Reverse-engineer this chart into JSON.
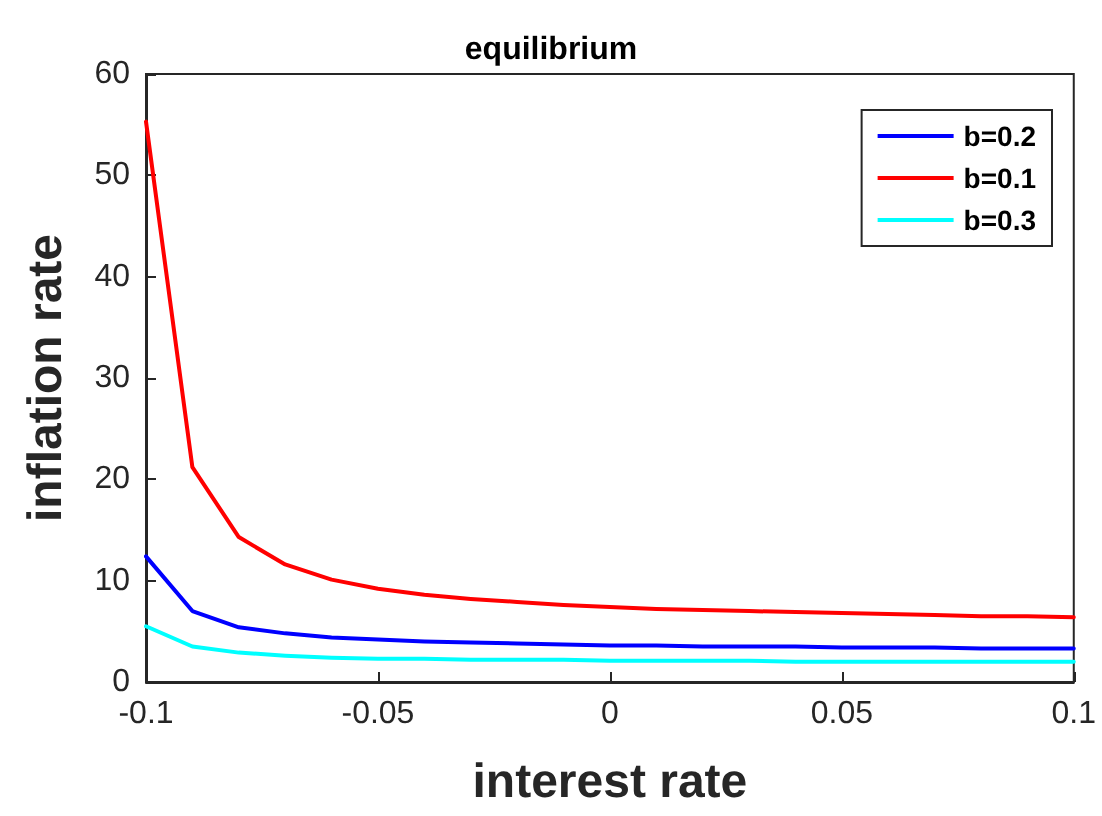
{
  "chart_data": {
    "type": "line",
    "title": "equilibrium",
    "xlabel": "interest rate",
    "ylabel": "inflation rate",
    "x": [
      -0.1,
      -0.09,
      -0.08,
      -0.07,
      -0.06,
      -0.05,
      -0.04,
      -0.03,
      -0.02,
      -0.01,
      0,
      0.01,
      0.02,
      0.03,
      0.04,
      0.05,
      0.06,
      0.07,
      0.08,
      0.09,
      0.1
    ],
    "series": [
      {
        "name": "b=0.2",
        "color": "#0000ff",
        "values": [
          12.4,
          7.0,
          5.4,
          4.8,
          4.4,
          4.2,
          4.0,
          3.9,
          3.8,
          3.7,
          3.6,
          3.6,
          3.5,
          3.5,
          3.5,
          3.4,
          3.4,
          3.4,
          3.3,
          3.3,
          3.3
        ]
      },
      {
        "name": "b=0.1",
        "color": "#ff0000",
        "values": [
          55.3,
          21.2,
          14.3,
          11.6,
          10.1,
          9.2,
          8.6,
          8.2,
          7.9,
          7.6,
          7.4,
          7.2,
          7.1,
          7.0,
          6.9,
          6.8,
          6.7,
          6.6,
          6.5,
          6.5,
          6.4
        ]
      },
      {
        "name": "b=0.3",
        "color": "#00ffff",
        "values": [
          5.5,
          3.5,
          2.9,
          2.6,
          2.4,
          2.3,
          2.3,
          2.2,
          2.2,
          2.2,
          2.1,
          2.1,
          2.1,
          2.1,
          2.0,
          2.0,
          2.0,
          2.0,
          2.0,
          2.0,
          2.0
        ]
      }
    ],
    "xlim": [
      -0.1,
      0.1
    ],
    "xticks": [
      -0.1,
      -0.05,
      0,
      0.05,
      0.1
    ],
    "ylim": [
      0,
      60
    ],
    "yticks": [
      0,
      10,
      20,
      30,
      40,
      50,
      60
    ],
    "grid": false,
    "legend": "top right",
    "marker": "none",
    "line_style": "solid"
  }
}
